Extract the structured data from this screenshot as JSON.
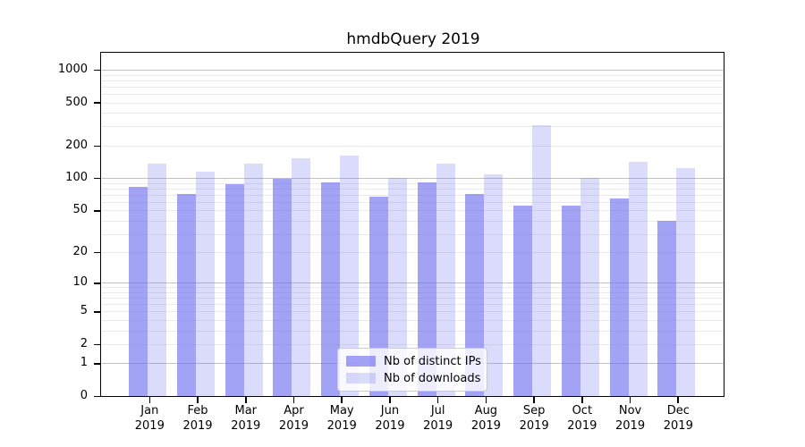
{
  "title": "hmdbQuery 2019",
  "chart_data": {
    "type": "bar",
    "title": "hmdbQuery 2019",
    "categories": [
      "Jan",
      "Feb",
      "Mar",
      "Apr",
      "May",
      "Jun",
      "Jul",
      "Aug",
      "Sep",
      "Oct",
      "Nov",
      "Dec"
    ],
    "year_label": "2019",
    "series": [
      {
        "name": "Nb of distinct IPs",
        "color": "rgba(106,106,240,0.62)",
        "values": [
          83,
          72,
          89,
          100,
          92,
          68,
          92,
          72,
          56,
          56,
          65,
          40
        ]
      },
      {
        "name": "Nb of downloads",
        "color": "rgba(106,106,240,0.24)",
        "values": [
          138,
          116,
          138,
          155,
          163,
          101,
          137,
          110,
          312,
          102,
          142,
          126
        ]
      }
    ],
    "xlabel": "",
    "ylabel": "",
    "yscale": "symlog (position proportional to ln(1+value))",
    "yticks": [
      0,
      1,
      2,
      5,
      10,
      20,
      50,
      100,
      200,
      500,
      1000
    ],
    "ylim": [
      0,
      1450
    ],
    "grid": "horizontal log major+minor gridlines",
    "legend_position": "lower center, inside plot"
  },
  "colors": {
    "axis": "#000000",
    "grid_major": "#c2c2c2",
    "grid_minor": "#eaeaea",
    "legend_border": "#cccccc",
    "legend_background": "rgba(255,255,255,0.8)"
  }
}
